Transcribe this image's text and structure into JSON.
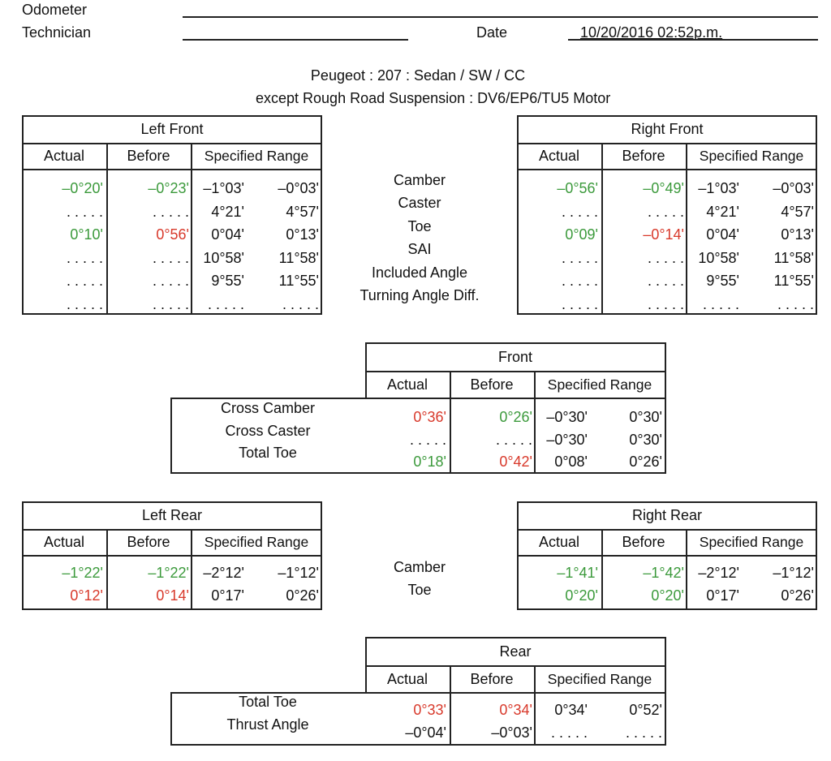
{
  "header": {
    "odometer_label": "Odometer",
    "technician_label": "Technician",
    "date_label": "Date",
    "date_value": "10/20/2016 02:52p.m."
  },
  "vehicle": {
    "line1": "Peugeot : 207 : Sedan / SW / CC",
    "line2": "except Rough Road Suspension : DV6/EP6/TU5 Motor"
  },
  "front_labels": [
    "Camber",
    "Caster",
    "Toe",
    "SAI",
    "Included Angle",
    "Turning Angle Diff."
  ],
  "left_front": {
    "title": "Left Front",
    "columns": [
      "Actual",
      "Before",
      "Specified Range"
    ],
    "rows": [
      [
        "–0°20'",
        "–0°23'",
        "–1°03'",
        "–0°03'"
      ],
      [
        ". . . . .",
        ". . . . .",
        "4°21'",
        "4°57'"
      ],
      [
        "0°10'",
        "0°56'",
        "0°04'",
        "0°13'"
      ],
      [
        ". . . . .",
        ". . . . .",
        "10°58'",
        "11°58'"
      ],
      [
        ". . . . .",
        ". . . . .",
        "9°55'",
        "11°55'"
      ],
      [
        ". . . . .",
        ". . . . .",
        ". . . . .",
        ". . . . ."
      ]
    ],
    "colors": [
      [
        "#3c9a3c",
        "#3c9a3c"
      ],
      [
        "#111",
        "#111"
      ],
      [
        "#3c9a3c",
        "#d8392b"
      ],
      [
        "#111",
        "#111"
      ],
      [
        "#111",
        "#111"
      ],
      [
        "#111",
        "#111"
      ]
    ]
  },
  "right_front": {
    "title": "Right Front",
    "columns": [
      "Actual",
      "Before",
      "Specified Range"
    ],
    "rows": [
      [
        "–0°56'",
        "–0°49'",
        "–1°03'",
        "–0°03'"
      ],
      [
        ". . . . .",
        ". . . . .",
        "4°21'",
        "4°57'"
      ],
      [
        "0°09'",
        "–0°14'",
        "0°04'",
        "0°13'"
      ],
      [
        ". . . . .",
        ". . . . .",
        "10°58'",
        "11°58'"
      ],
      [
        ". . . . .",
        ". . . . .",
        "9°55'",
        "11°55'"
      ],
      [
        ". . . . .",
        ". . . . .",
        ". . . . .",
        ". . . . ."
      ]
    ],
    "colors": [
      [
        "#3c9a3c",
        "#3c9a3c"
      ],
      [
        "#111",
        "#111"
      ],
      [
        "#3c9a3c",
        "#d8392b"
      ],
      [
        "#111",
        "#111"
      ],
      [
        "#111",
        "#111"
      ],
      [
        "#111",
        "#111"
      ]
    ]
  },
  "front": {
    "title": "Front",
    "columns": [
      "Actual",
      "Before",
      "Specified Range"
    ],
    "labels": [
      "Cross Camber",
      "Cross Caster",
      "Total Toe"
    ],
    "rows": [
      [
        "0°36'",
        "0°26'",
        "–0°30'",
        "0°30'"
      ],
      [
        ". . . . .",
        ". . . . .",
        "–0°30'",
        "0°30'"
      ],
      [
        "0°18'",
        "0°42'",
        "0°08'",
        "0°26'"
      ]
    ],
    "colors": [
      [
        "#d8392b",
        "#3c9a3c"
      ],
      [
        "#111",
        "#111"
      ],
      [
        "#3c9a3c",
        "#d8392b"
      ]
    ]
  },
  "rear_labels": [
    "Camber",
    "Toe"
  ],
  "left_rear": {
    "title": "Left Rear",
    "columns": [
      "Actual",
      "Before",
      "Specified Range"
    ],
    "rows": [
      [
        "–1°22'",
        "–1°22'",
        "–2°12'",
        "–1°12'"
      ],
      [
        "0°12'",
        "0°14'",
        "0°17'",
        "0°26'"
      ]
    ],
    "colors": [
      [
        "#3c9a3c",
        "#3c9a3c"
      ],
      [
        "#d8392b",
        "#d8392b"
      ]
    ]
  },
  "right_rear": {
    "title": "Right Rear",
    "columns": [
      "Actual",
      "Before",
      "Specified Range"
    ],
    "rows": [
      [
        "–1°41'",
        "–1°42'",
        "–2°12'",
        "–1°12'"
      ],
      [
        "0°20'",
        "0°20'",
        "0°17'",
        "0°26'"
      ]
    ],
    "colors": [
      [
        "#3c9a3c",
        "#3c9a3c"
      ],
      [
        "#3c9a3c",
        "#3c9a3c"
      ]
    ]
  },
  "rear": {
    "title": "Rear",
    "columns": [
      "Actual",
      "Before",
      "Specified Range"
    ],
    "labels": [
      "Total Toe",
      "Thrust Angle"
    ],
    "rows": [
      [
        "0°33'",
        "0°34'",
        "0°34'",
        "0°52'"
      ],
      [
        "–0°04'",
        "–0°03'",
        ". . . . .",
        ". . . . ."
      ]
    ],
    "colors": [
      [
        "#d8392b",
        "#d8392b"
      ],
      [
        "#111",
        "#111"
      ]
    ]
  }
}
